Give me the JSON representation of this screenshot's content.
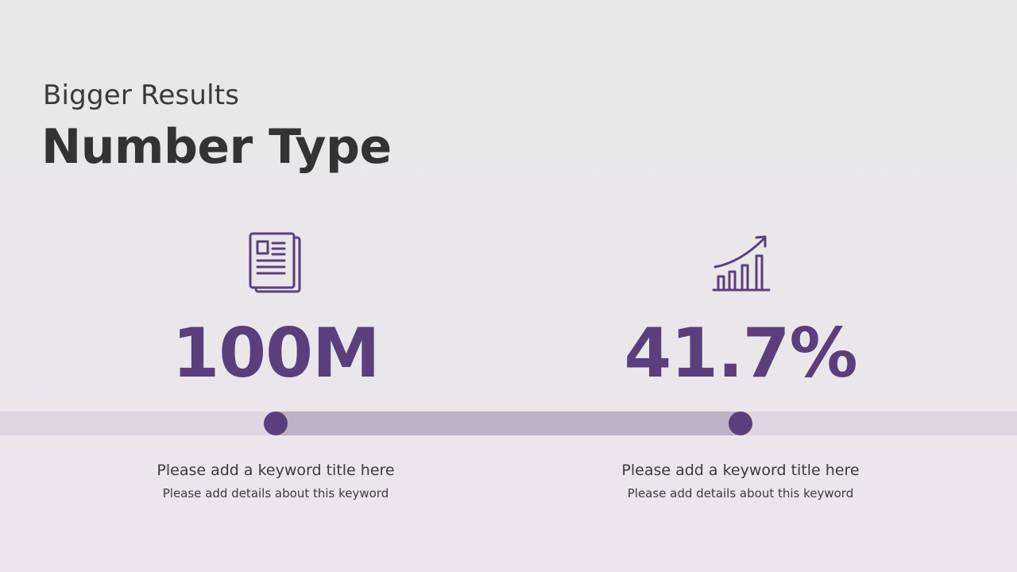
{
  "header": {
    "subtitle": "Bigger Results",
    "title": "Number Type"
  },
  "stats": [
    {
      "icon": "newspaper-icon",
      "value": "100M",
      "keyword_title": "Please add a keyword title here",
      "keyword_details": "Please add details about this keyword"
    },
    {
      "icon": "growth-chart-icon",
      "value": "41.7%",
      "keyword_title": "Please add a keyword title here",
      "keyword_details": "Please add details about this keyword"
    }
  ],
  "colors": {
    "accent": "#5b3f7d",
    "band_light": "#dcd6e2",
    "band_mid": "#bbb2c6",
    "text": "#333333"
  }
}
